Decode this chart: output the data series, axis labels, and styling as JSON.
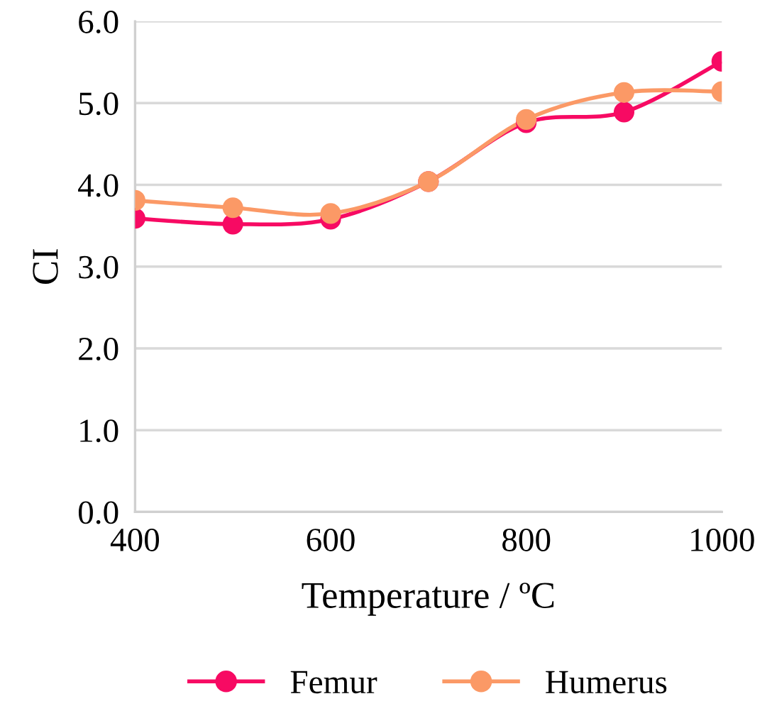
{
  "chart_data": {
    "type": "line",
    "xlabel": "Temperature / ºC",
    "ylabel": "CI",
    "x": [
      400,
      500,
      600,
      700,
      800,
      900,
      1000
    ],
    "series": [
      {
        "name": "Femur",
        "color": "#f70a63",
        "values": [
          3.59,
          3.52,
          3.58,
          4.04,
          4.76,
          4.89,
          5.51
        ]
      },
      {
        "name": "Humerus",
        "color": "#fb9966",
        "values": [
          3.81,
          3.72,
          3.65,
          4.04,
          4.8,
          5.13,
          5.14
        ]
      }
    ],
    "xlim": [
      400,
      1000
    ],
    "xticks": [
      400,
      600,
      800,
      1000
    ],
    "ylim": [
      0,
      6
    ],
    "yticks": [
      {
        "value": 0,
        "label": "0.0"
      },
      {
        "value": 1,
        "label": "1.0"
      },
      {
        "value": 2,
        "label": "2.0"
      },
      {
        "value": 3,
        "label": "3.0"
      },
      {
        "value": 4,
        "label": "4.0"
      },
      {
        "value": 5,
        "label": "5.0"
      },
      {
        "value": 6,
        "label": "6.0"
      }
    ],
    "grid": "y",
    "legend": "bottom",
    "marker": "circle",
    "line_style": "solid"
  }
}
